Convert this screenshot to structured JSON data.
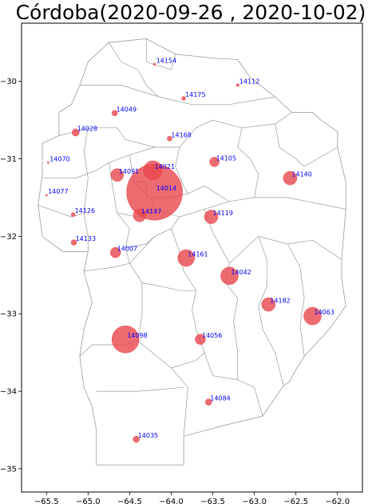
{
  "chart_data": {
    "type": "scatter",
    "title": "Córdoba(2020-09-26 , 2020-10-02)",
    "xlim": [
      -65.8,
      -61.7
    ],
    "ylim": [
      -35.3,
      -29.25
    ],
    "xticks": [
      {
        "value": -65.5,
        "label": "−65.5"
      },
      {
        "value": -65.0,
        "label": "−65.0"
      },
      {
        "value": -64.5,
        "label": "−64.5"
      },
      {
        "value": -64.0,
        "label": "−64.0"
      },
      {
        "value": -63.5,
        "label": "−63.5"
      },
      {
        "value": -63.0,
        "label": "−63.0"
      },
      {
        "value": -62.5,
        "label": "−62.5"
      },
      {
        "value": -62.0,
        "label": "−62.0"
      }
    ],
    "yticks": [
      {
        "value": -30,
        "label": "−30"
      },
      {
        "value": -31,
        "label": "−31"
      },
      {
        "value": -32,
        "label": "−32"
      },
      {
        "value": -33,
        "label": "−33"
      },
      {
        "value": -34,
        "label": "−34"
      },
      {
        "value": -35,
        "label": "−35"
      }
    ],
    "marker_color": "#e8474d",
    "label_color": "#0000ff",
    "province_outline": [
      [
        -64.75,
        -29.5
      ],
      [
        -64.3,
        -29.45
      ],
      [
        -63.95,
        -29.65
      ],
      [
        -63.5,
        -29.7
      ],
      [
        -63.2,
        -29.72
      ],
      [
        -63.05,
        -29.95
      ],
      [
        -62.75,
        -30.2
      ],
      [
        -62.55,
        -30.4
      ],
      [
        -62.3,
        -30.4
      ],
      [
        -62.2,
        -30.5
      ],
      [
        -62.0,
        -30.65
      ],
      [
        -62.0,
        -30.85
      ],
      [
        -61.9,
        -31.3
      ],
      [
        -61.9,
        -31.65
      ],
      [
        -61.95,
        -32.3
      ],
      [
        -61.95,
        -32.55
      ],
      [
        -61.9,
        -32.9
      ],
      [
        -62.1,
        -33.2
      ],
      [
        -62.4,
        -33.55
      ],
      [
        -62.5,
        -33.72
      ],
      [
        -62.58,
        -33.88
      ],
      [
        -62.65,
        -33.93
      ],
      [
        -62.9,
        -34.32
      ],
      [
        -63.4,
        -34.45
      ],
      [
        -63.85,
        -34.58
      ],
      [
        -63.85,
        -34.95
      ],
      [
        -64.0,
        -34.95
      ],
      [
        -64.42,
        -34.95
      ],
      [
        -64.9,
        -34.95
      ],
      [
        -64.9,
        -34.5
      ],
      [
        -64.95,
        -34.2
      ],
      [
        -65.05,
        -33.95
      ],
      [
        -65.1,
        -33.55
      ],
      [
        -65.05,
        -33.2
      ],
      [
        -64.95,
        -32.85
      ],
      [
        -65.05,
        -32.45
      ],
      [
        -65.0,
        -32.2
      ],
      [
        -65.3,
        -32.2
      ],
      [
        -65.55,
        -32.0
      ],
      [
        -65.6,
        -31.6
      ],
      [
        -65.55,
        -31.2
      ],
      [
        -65.55,
        -30.8
      ],
      [
        -65.35,
        -30.7
      ],
      [
        -65.35,
        -30.4
      ],
      [
        -65.2,
        -30.3
      ],
      [
        -65.1,
        -30.05
      ],
      [
        -65.0,
        -29.75
      ],
      [
        -64.75,
        -29.5
      ]
    ],
    "department_lines": [
      [
        [
          -64.75,
          -29.5
        ],
        [
          -64.6,
          -29.75
        ],
        [
          -64.4,
          -29.85
        ],
        [
          -64.3,
          -30.05
        ],
        [
          -64.15,
          -30.2
        ]
      ],
      [
        [
          -64.3,
          -29.45
        ],
        [
          -64.3,
          -29.75
        ],
        [
          -64.0,
          -29.85
        ],
        [
          -63.95,
          -29.65
        ]
      ],
      [
        [
          -65.1,
          -30.05
        ],
        [
          -64.6,
          -30.05
        ],
        [
          -64.15,
          -30.2
        ],
        [
          -63.75,
          -30.3
        ],
        [
          -63.3,
          -30.3
        ],
        [
          -62.75,
          -30.2
        ]
      ],
      [
        [
          -65.35,
          -30.7
        ],
        [
          -64.95,
          -30.6
        ],
        [
          -64.65,
          -30.6
        ],
        [
          -64.55,
          -30.75
        ],
        [
          -64.2,
          -30.85
        ],
        [
          -63.9,
          -30.85
        ],
        [
          -63.7,
          -30.6
        ],
        [
          -63.5,
          -30.5
        ],
        [
          -63.15,
          -30.6
        ],
        [
          -62.75,
          -30.55
        ],
        [
          -62.55,
          -30.4
        ]
      ],
      [
        [
          -65.55,
          -31.25
        ],
        [
          -65.15,
          -31.25
        ],
        [
          -64.9,
          -31.15
        ],
        [
          -64.75,
          -31.05
        ],
        [
          -64.5,
          -30.95
        ],
        [
          -64.2,
          -30.85
        ]
      ],
      [
        [
          -65.0,
          -30.6
        ],
        [
          -65.05,
          -30.9
        ],
        [
          -65.0,
          -31.25
        ],
        [
          -65.05,
          -31.7
        ],
        [
          -65.0,
          -32.0
        ],
        [
          -65.0,
          -32.2
        ]
      ],
      [
        [
          -65.6,
          -31.6
        ],
        [
          -65.2,
          -31.75
        ],
        [
          -65.05,
          -31.7
        ]
      ],
      [
        [
          -64.75,
          -31.05
        ],
        [
          -64.7,
          -31.4
        ],
        [
          -64.65,
          -31.7
        ],
        [
          -64.5,
          -31.9
        ],
        [
          -64.55,
          -32.15
        ],
        [
          -64.5,
          -32.35
        ]
      ],
      [
        [
          -64.5,
          -30.95
        ],
        [
          -64.45,
          -31.3
        ],
        [
          -64.25,
          -31.5
        ],
        [
          -64.0,
          -31.5
        ],
        [
          -63.8,
          -31.45
        ],
        [
          -63.6,
          -31.35
        ],
        [
          -63.3,
          -31.55
        ],
        [
          -63.0,
          -31.5
        ],
        [
          -62.6,
          -31.5
        ],
        [
          -61.9,
          -31.65
        ]
      ],
      [
        [
          -63.9,
          -30.85
        ],
        [
          -63.95,
          -31.1
        ],
        [
          -63.85,
          -31.35
        ],
        [
          -63.8,
          -31.45
        ]
      ],
      [
        [
          -63.15,
          -30.6
        ],
        [
          -63.2,
          -30.85
        ],
        [
          -63.05,
          -31.0
        ],
        [
          -62.95,
          -31.2
        ],
        [
          -63.0,
          -31.5
        ]
      ],
      [
        [
          -62.75,
          -30.55
        ],
        [
          -62.7,
          -30.85
        ],
        [
          -62.5,
          -31.0
        ],
        [
          -62.4,
          -31.1
        ],
        [
          -62.0,
          -30.85
        ]
      ],
      [
        [
          -64.5,
          -32.35
        ],
        [
          -64.2,
          -32.0
        ],
        [
          -64.0,
          -31.9
        ],
        [
          -63.9,
          -31.75
        ],
        [
          -63.6,
          -31.65
        ],
        [
          -63.3,
          -31.55
        ]
      ],
      [
        [
          -64.65,
          -31.7
        ],
        [
          -64.4,
          -31.75
        ],
        [
          -64.2,
          -31.65
        ],
        [
          -64.25,
          -31.5
        ]
      ],
      [
        [
          -65.05,
          -32.45
        ],
        [
          -64.7,
          -32.4
        ],
        [
          -64.5,
          -32.35
        ],
        [
          -64.35,
          -32.6
        ],
        [
          -64.1,
          -32.65
        ],
        [
          -63.9,
          -32.7
        ],
        [
          -63.7,
          -32.7
        ]
      ],
      [
        [
          -64.35,
          -32.6
        ],
        [
          -64.35,
          -33.0
        ],
        [
          -64.4,
          -33.35
        ],
        [
          -64.0,
          -33.7
        ],
        [
          -63.8,
          -33.95
        ],
        [
          -63.85,
          -34.58
        ]
      ],
      [
        [
          -64.0,
          -31.9
        ],
        [
          -63.9,
          -32.2
        ],
        [
          -63.85,
          -32.45
        ],
        [
          -63.7,
          -32.7
        ],
        [
          -63.75,
          -32.95
        ],
        [
          -63.7,
          -33.2
        ],
        [
          -63.6,
          -33.5
        ],
        [
          -63.5,
          -33.8
        ],
        [
          -63.2,
          -33.85
        ],
        [
          -63.0,
          -33.95
        ],
        [
          -62.9,
          -34.32
        ]
      ],
      [
        [
          -63.6,
          -31.65
        ],
        [
          -63.5,
          -31.95
        ],
        [
          -63.4,
          -32.15
        ],
        [
          -63.3,
          -32.35
        ],
        [
          -63.35,
          -32.6
        ],
        [
          -63.2,
          -32.8
        ],
        [
          -63.25,
          -33.1
        ],
        [
          -63.2,
          -33.5
        ],
        [
          -63.2,
          -33.85
        ]
      ],
      [
        [
          -63.3,
          -32.35
        ],
        [
          -62.95,
          -32.0
        ],
        [
          -62.6,
          -32.1
        ],
        [
          -62.3,
          -32.05
        ],
        [
          -61.95,
          -32.3
        ]
      ],
      [
        [
          -62.95,
          -32.0
        ],
        [
          -62.85,
          -32.3
        ],
        [
          -62.85,
          -32.65
        ],
        [
          -62.95,
          -32.9
        ],
        [
          -62.9,
          -33.2
        ],
        [
          -62.75,
          -33.5
        ],
        [
          -62.65,
          -33.93
        ]
      ],
      [
        [
          -62.6,
          -32.1
        ],
        [
          -62.45,
          -32.4
        ],
        [
          -62.4,
          -32.8
        ],
        [
          -62.45,
          -33.15
        ],
        [
          -62.4,
          -33.55
        ]
      ],
      [
        [
          -64.4,
          -33.35
        ],
        [
          -64.6,
          -33.4
        ],
        [
          -64.95,
          -33.4
        ],
        [
          -65.1,
          -33.55
        ]
      ],
      [
        [
          -64.9,
          -34.0
        ],
        [
          -64.4,
          -34.0
        ],
        [
          -63.85,
          -33.95
        ]
      ],
      [
        [
          -64.0,
          -33.7
        ],
        [
          -63.7,
          -33.6
        ],
        [
          -63.6,
          -33.5
        ]
      ],
      [
        [
          -64.45,
          -31.3
        ],
        [
          -64.3,
          -31.3
        ],
        [
          -64.3,
          -31.5
        ]
      ],
      [
        [
          -64.2,
          -31.65
        ],
        [
          -64.05,
          -31.7
        ],
        [
          -63.9,
          -31.75
        ]
      ],
      [
        [
          -64.55,
          -32.15
        ],
        [
          -64.3,
          -32.1
        ],
        [
          -64.2,
          -32.0
        ]
      ]
    ],
    "points": [
      {
        "id": "14154",
        "lon": -64.2,
        "lat": -29.78,
        "size": 1.5
      },
      {
        "id": "14112",
        "lon": -63.2,
        "lat": -30.05,
        "size": 1.8
      },
      {
        "id": "14175",
        "lon": -63.85,
        "lat": -30.22,
        "size": 2.5
      },
      {
        "id": "14049",
        "lon": -64.68,
        "lat": -30.41,
        "size": 3.5
      },
      {
        "id": "14028",
        "lon": -65.15,
        "lat": -30.66,
        "size": 4.5
      },
      {
        "id": "14168",
        "lon": -64.02,
        "lat": -30.74,
        "size": 3
      },
      {
        "id": "14070",
        "lon": -65.48,
        "lat": -31.05,
        "size": 1.2
      },
      {
        "id": "14105",
        "lon": -63.48,
        "lat": -31.04,
        "size": 6
      },
      {
        "id": "14091",
        "lon": -64.65,
        "lat": -31.21,
        "size": 8
      },
      {
        "id": "14021",
        "lon": -64.22,
        "lat": -31.15,
        "size": 12
      },
      {
        "id": "14140",
        "lon": -62.57,
        "lat": -31.25,
        "size": 8.5
      },
      {
        "id": "14014",
        "lon": -64.2,
        "lat": -31.43,
        "size": 35
      },
      {
        "id": "14077",
        "lon": -65.5,
        "lat": -31.47,
        "size": 1.2
      },
      {
        "id": "14126",
        "lon": -65.18,
        "lat": -31.72,
        "size": 2.5
      },
      {
        "id": "14147",
        "lon": -64.38,
        "lat": -31.73,
        "size": 8
      },
      {
        "id": "14119",
        "lon": -63.52,
        "lat": -31.75,
        "size": 8.5
      },
      {
        "id": "14133",
        "lon": -65.17,
        "lat": -32.08,
        "size": 3.5
      },
      {
        "id": "14007",
        "lon": -64.67,
        "lat": -32.21,
        "size": 6.5
      },
      {
        "id": "14161",
        "lon": -63.82,
        "lat": -32.28,
        "size": 10.5
      },
      {
        "id": "14042",
        "lon": -63.3,
        "lat": -32.51,
        "size": 11
      },
      {
        "id": "14182",
        "lon": -62.83,
        "lat": -32.88,
        "size": 8.5
      },
      {
        "id": "14063",
        "lon": -62.3,
        "lat": -33.03,
        "size": 11
      },
      {
        "id": "14098",
        "lon": -64.55,
        "lat": -33.33,
        "size": 17
      },
      {
        "id": "14056",
        "lon": -63.65,
        "lat": -33.33,
        "size": 6.5
      },
      {
        "id": "14084",
        "lon": -63.55,
        "lat": -34.14,
        "size": 4
      },
      {
        "id": "14035",
        "lon": -64.42,
        "lat": -34.62,
        "size": 4
      }
    ]
  }
}
